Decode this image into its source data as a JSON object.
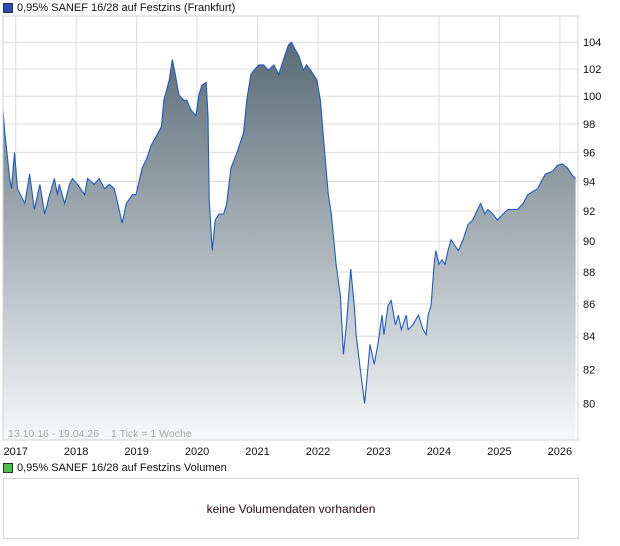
{
  "price_legend": {
    "label": "0,95% SANEF 16/28 auf Festzins (Frankfurt)",
    "color": "#1f4fb4"
  },
  "volume_legend": {
    "label": "0,95% SANEF 16/28 auf Festzins Volumen",
    "color": "#4cc04c"
  },
  "volume_message": "keine Volumendaten vorhanden",
  "chart_data": {
    "type": "area",
    "title": "0,95% SANEF 16/28 auf Festzins (Frankfurt)",
    "range_note": "13.10.16 - 19.04.26",
    "tick_note": "1 Tick = 1 Woche",
    "xlabel": "",
    "ylabel": "",
    "xlim": [
      2016.79,
      2026.3
    ],
    "ylim": [
      77.9,
      106
    ],
    "yscale": "log",
    "grid": true,
    "line_color": "#1f5bc6",
    "fill_top": "#4f626e",
    "fill_bottom": "#f7f8f9",
    "x_ticks": [
      {
        "value": 2017,
        "label": "2017"
      },
      {
        "value": 2018,
        "label": "2018"
      },
      {
        "value": 2019,
        "label": "2019"
      },
      {
        "value": 2020,
        "label": "2020"
      },
      {
        "value": 2021,
        "label": "2021"
      },
      {
        "value": 2022,
        "label": "2022"
      },
      {
        "value": 2023,
        "label": "2023"
      },
      {
        "value": 2024,
        "label": "2024"
      },
      {
        "value": 2025,
        "label": "2025"
      },
      {
        "value": 2026,
        "label": "2026"
      }
    ],
    "y_ticks": [
      {
        "value": 80,
        "label": "80"
      },
      {
        "value": 82,
        "label": "82"
      },
      {
        "value": 84,
        "label": "84"
      },
      {
        "value": 86,
        "label": "86"
      },
      {
        "value": 88,
        "label": "88"
      },
      {
        "value": 90,
        "label": "90"
      },
      {
        "value": 92,
        "label": "92"
      },
      {
        "value": 94,
        "label": "94"
      },
      {
        "value": 96,
        "label": "96"
      },
      {
        "value": 98,
        "label": "98"
      },
      {
        "value": 100,
        "label": "100"
      },
      {
        "value": 102,
        "label": "102"
      },
      {
        "value": 104,
        "label": "104"
      }
    ],
    "series": [
      {
        "name": "0,95% SANEF 16/28 auf Festzins (Frankfurt)",
        "points": [
          [
            2016.79,
            99.0
          ],
          [
            2016.82,
            97.4
          ],
          [
            2016.9,
            94.2
          ],
          [
            2016.93,
            93.5
          ],
          [
            2016.98,
            96.0
          ],
          [
            2017.03,
            93.5
          ],
          [
            2017.15,
            92.5
          ],
          [
            2017.23,
            94.5
          ],
          [
            2017.31,
            92.1
          ],
          [
            2017.4,
            93.8
          ],
          [
            2017.48,
            91.8
          ],
          [
            2017.56,
            93.1
          ],
          [
            2017.64,
            94.2
          ],
          [
            2017.69,
            93.1
          ],
          [
            2017.72,
            93.8
          ],
          [
            2017.81,
            92.5
          ],
          [
            2017.89,
            93.8
          ],
          [
            2017.94,
            94.2
          ],
          [
            2018.02,
            93.8
          ],
          [
            2018.14,
            93.1
          ],
          [
            2018.19,
            94.2
          ],
          [
            2018.3,
            93.8
          ],
          [
            2018.38,
            94.2
          ],
          [
            2018.47,
            93.5
          ],
          [
            2018.55,
            93.8
          ],
          [
            2018.63,
            93.5
          ],
          [
            2018.71,
            92.1
          ],
          [
            2018.76,
            91.2
          ],
          [
            2018.83,
            92.5
          ],
          [
            2018.93,
            93.1
          ],
          [
            2018.99,
            93.1
          ],
          [
            2019.09,
            94.9
          ],
          [
            2019.17,
            95.6
          ],
          [
            2019.24,
            96.5
          ],
          [
            2019.32,
            97.1
          ],
          [
            2019.41,
            97.8
          ],
          [
            2019.45,
            99.7
          ],
          [
            2019.54,
            101.2
          ],
          [
            2019.59,
            102.7
          ],
          [
            2019.64,
            101.6
          ],
          [
            2019.7,
            100.1
          ],
          [
            2019.78,
            99.7
          ],
          [
            2019.83,
            99.7
          ],
          [
            2019.9,
            99.0
          ],
          [
            2019.98,
            98.6
          ],
          [
            2020.03,
            100.1
          ],
          [
            2020.08,
            100.8
          ],
          [
            2020.15,
            101.0
          ],
          [
            2020.18,
            98.6
          ],
          [
            2020.2,
            92.8
          ],
          [
            2020.25,
            89.4
          ],
          [
            2020.3,
            91.4
          ],
          [
            2020.36,
            91.8
          ],
          [
            2020.44,
            91.8
          ],
          [
            2020.49,
            92.5
          ],
          [
            2020.56,
            94.9
          ],
          [
            2020.66,
            96.0
          ],
          [
            2020.77,
            97.4
          ],
          [
            2020.82,
            99.7
          ],
          [
            2020.89,
            101.6
          ],
          [
            2020.94,
            101.9
          ],
          [
            2021.02,
            102.3
          ],
          [
            2021.1,
            102.3
          ],
          [
            2021.18,
            101.9
          ],
          [
            2021.27,
            102.3
          ],
          [
            2021.35,
            101.6
          ],
          [
            2021.43,
            102.7
          ],
          [
            2021.51,
            103.8
          ],
          [
            2021.56,
            104.0
          ],
          [
            2021.63,
            103.4
          ],
          [
            2021.68,
            103.0
          ],
          [
            2021.76,
            101.9
          ],
          [
            2021.81,
            102.3
          ],
          [
            2021.88,
            101.9
          ],
          [
            2021.98,
            101.2
          ],
          [
            2022.04,
            99.7
          ],
          [
            2022.11,
            96.0
          ],
          [
            2022.17,
            93.1
          ],
          [
            2022.22,
            91.8
          ],
          [
            2022.3,
            88.5
          ],
          [
            2022.37,
            86.5
          ],
          [
            2022.42,
            82.9
          ],
          [
            2022.47,
            84.7
          ],
          [
            2022.54,
            88.2
          ],
          [
            2022.6,
            85.9
          ],
          [
            2022.63,
            84.1
          ],
          [
            2022.7,
            82.0
          ],
          [
            2022.77,
            80.0
          ],
          [
            2022.8,
            81.1
          ],
          [
            2022.86,
            83.5
          ],
          [
            2022.93,
            82.3
          ],
          [
            2022.99,
            83.5
          ],
          [
            2023.06,
            85.3
          ],
          [
            2023.09,
            84.1
          ],
          [
            2023.16,
            85.9
          ],
          [
            2023.21,
            86.2
          ],
          [
            2023.28,
            84.7
          ],
          [
            2023.33,
            85.3
          ],
          [
            2023.38,
            84.4
          ],
          [
            2023.46,
            85.3
          ],
          [
            2023.49,
            84.4
          ],
          [
            2023.57,
            84.7
          ],
          [
            2023.66,
            85.3
          ],
          [
            2023.74,
            84.4
          ],
          [
            2023.79,
            84.1
          ],
          [
            2023.82,
            85.3
          ],
          [
            2023.87,
            85.9
          ],
          [
            2023.92,
            88.5
          ],
          [
            2023.95,
            89.4
          ],
          [
            2024.0,
            88.5
          ],
          [
            2024.05,
            88.8
          ],
          [
            2024.1,
            88.5
          ],
          [
            2024.15,
            89.4
          ],
          [
            2024.2,
            90.1
          ],
          [
            2024.25,
            89.8
          ],
          [
            2024.32,
            89.4
          ],
          [
            2024.4,
            90.1
          ],
          [
            2024.48,
            91.1
          ],
          [
            2024.56,
            91.4
          ],
          [
            2024.64,
            92.1
          ],
          [
            2024.69,
            92.5
          ],
          [
            2024.76,
            91.8
          ],
          [
            2024.81,
            92.1
          ],
          [
            2024.89,
            91.8
          ],
          [
            2024.97,
            91.4
          ],
          [
            2025.06,
            91.8
          ],
          [
            2025.14,
            92.1
          ],
          [
            2025.22,
            92.1
          ],
          [
            2025.3,
            92.1
          ],
          [
            2025.39,
            92.5
          ],
          [
            2025.47,
            93.1
          ],
          [
            2025.63,
            93.5
          ],
          [
            2025.72,
            94.2
          ],
          [
            2025.76,
            94.5
          ],
          [
            2025.88,
            94.7
          ],
          [
            2025.96,
            95.1
          ],
          [
            2026.04,
            95.2
          ],
          [
            2026.13,
            94.9
          ],
          [
            2026.19,
            94.5
          ],
          [
            2026.26,
            94.2
          ]
        ]
      }
    ]
  }
}
